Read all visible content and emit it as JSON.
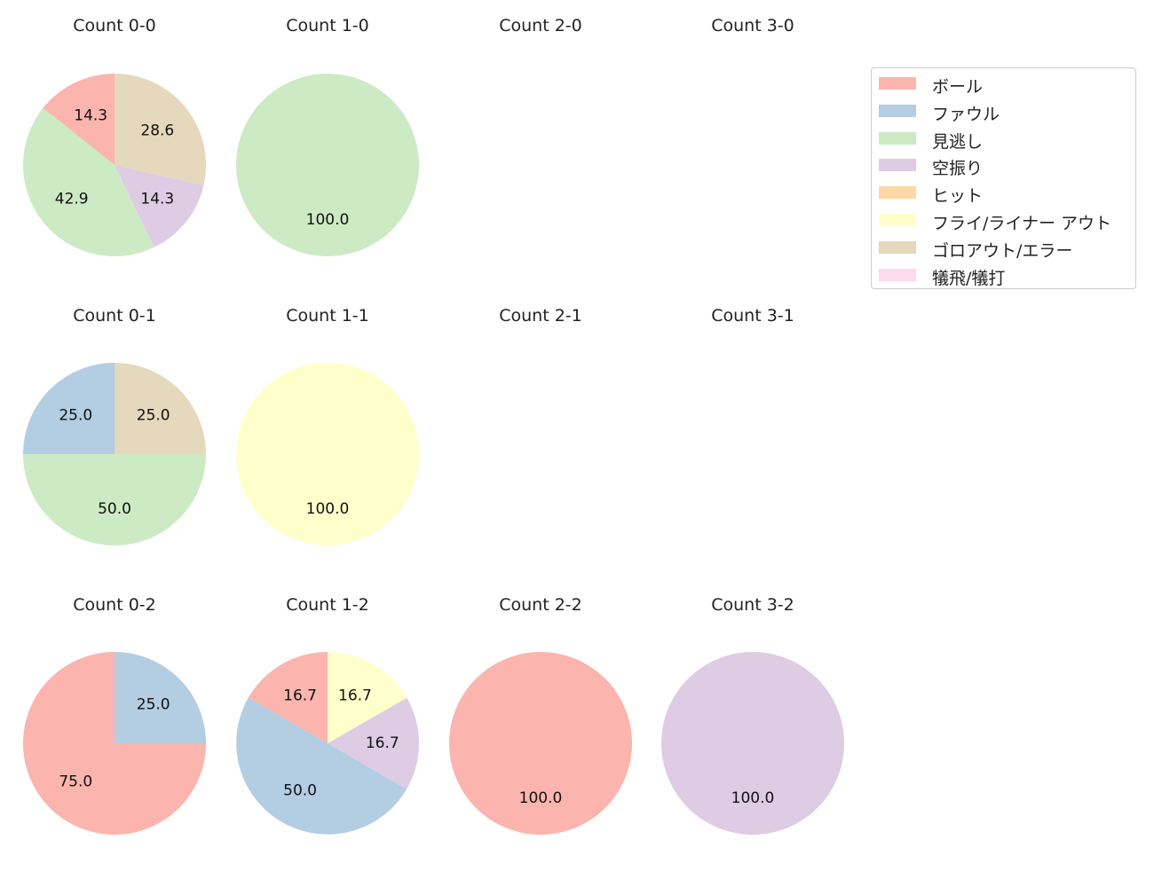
{
  "chart_data": {
    "type": "pie",
    "legend": {
      "placement": "right",
      "entries": [
        {
          "label": "ボール",
          "color": "#fbb4ae"
        },
        {
          "label": "ファウル",
          "color": "#b3cde3"
        },
        {
          "label": "見逃し",
          "color": "#ccebc5"
        },
        {
          "label": "空振り",
          "color": "#decbe4"
        },
        {
          "label": "ヒット",
          "color": "#fed9a6"
        },
        {
          "label": "フライ/ライナー アウト",
          "color": "#ffffcc"
        },
        {
          "label": "ゴロアウト/エラー",
          "color": "#e5d8bd"
        },
        {
          "label": "犠飛/犠打",
          "color": "#fddaec"
        }
      ]
    },
    "charts": [
      {
        "title": "Count 0-0",
        "slices": [
          {
            "label": "ボール",
            "value": 14.3
          },
          {
            "label": "見逃し",
            "value": 42.9
          },
          {
            "label": "空振り",
            "value": 14.3
          },
          {
            "label": "ゴロアウト/エラー",
            "value": 28.6
          }
        ]
      },
      {
        "title": "Count 1-0",
        "slices": [
          {
            "label": "見逃し",
            "value": 100.0
          }
        ]
      },
      {
        "title": "Count 2-0",
        "slices": []
      },
      {
        "title": "Count 3-0",
        "slices": []
      },
      {
        "title": "Count 0-1",
        "slices": [
          {
            "label": "ファウル",
            "value": 25.0
          },
          {
            "label": "見逃し",
            "value": 50.0
          },
          {
            "label": "ゴロアウト/エラー",
            "value": 25.0
          }
        ]
      },
      {
        "title": "Count 1-1",
        "slices": [
          {
            "label": "フライ/ライナー アウト",
            "value": 100.0
          }
        ]
      },
      {
        "title": "Count 2-1",
        "slices": []
      },
      {
        "title": "Count 3-1",
        "slices": []
      },
      {
        "title": "Count 0-2",
        "slices": [
          {
            "label": "ボール",
            "value": 75.0
          },
          {
            "label": "ファウル",
            "value": 25.0
          }
        ]
      },
      {
        "title": "Count 1-2",
        "slices": [
          {
            "label": "ボール",
            "value": 16.7
          },
          {
            "label": "ファウル",
            "value": 50.0
          },
          {
            "label": "空振り",
            "value": 16.7
          },
          {
            "label": "フライ/ライナー アウト",
            "value": 16.7
          }
        ]
      },
      {
        "title": "Count 2-2",
        "slices": [
          {
            "label": "ボール",
            "value": 100.0
          }
        ]
      },
      {
        "title": "Count 3-2",
        "slices": [
          {
            "label": "空振り",
            "value": 100.0
          }
        ]
      }
    ]
  }
}
